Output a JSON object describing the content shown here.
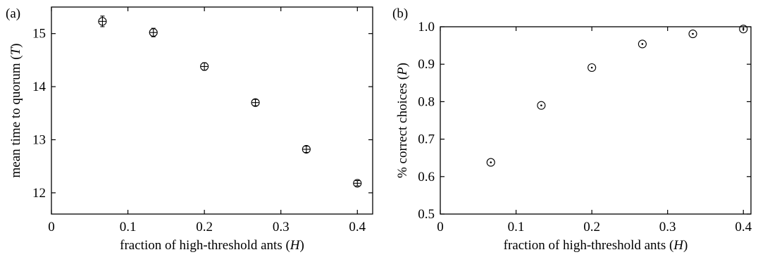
{
  "chart_data": [
    {
      "type": "scatter",
      "panel_label": "(a)",
      "xlabel_parts": [
        "fraction of high-threshold ants (",
        "H",
        ")"
      ],
      "ylabel_parts": [
        "mean time to quorum (",
        "T",
        ")"
      ],
      "xlim": [
        0,
        0.42
      ],
      "ylim": [
        11.6,
        15.5
      ],
      "x_ticks": [
        0,
        0.1,
        0.2,
        0.3,
        0.4
      ],
      "x_tick_labels": [
        "0",
        "0.1",
        "0.2",
        "0.3",
        "0.4"
      ],
      "y_ticks": [
        12,
        13,
        14,
        15
      ],
      "y_tick_labels": [
        "12",
        "13",
        "14",
        "15"
      ],
      "grid": false,
      "marker": "circle-with-errorbar",
      "series": [
        {
          "x": [
            0.0667,
            0.1333,
            0.2,
            0.2667,
            0.3333,
            0.4
          ],
          "y": [
            15.23,
            15.02,
            14.38,
            13.7,
            12.82,
            12.18
          ],
          "error": [
            0.1,
            0.08,
            0.07,
            0.06,
            0.06,
            0.05
          ]
        }
      ]
    },
    {
      "type": "scatter",
      "panel_label": "(b)",
      "xlabel_parts": [
        "fraction of high-threshold ants (",
        "H",
        ")"
      ],
      "ylabel_parts": [
        "% correct choices (",
        "P",
        ")"
      ],
      "xlim": [
        0,
        0.41
      ],
      "ylim": [
        0.5,
        1.0
      ],
      "x_ticks": [
        0,
        0.1,
        0.2,
        0.3,
        0.4
      ],
      "x_tick_labels": [
        "0",
        "0.1",
        "0.2",
        "0.3",
        "0.4"
      ],
      "y_ticks": [
        0.5,
        0.6,
        0.7,
        0.8,
        0.9,
        1.0
      ],
      "y_tick_labels": [
        "0.5",
        "0.6",
        "0.7",
        "0.8",
        "0.9",
        "1.0"
      ],
      "grid": false,
      "marker": "circle-with-dot",
      "series": [
        {
          "x": [
            0.0667,
            0.1333,
            0.2,
            0.2667,
            0.3333,
            0.4
          ],
          "y": [
            0.638,
            0.79,
            0.891,
            0.954,
            0.981,
            0.994
          ]
        }
      ]
    }
  ]
}
